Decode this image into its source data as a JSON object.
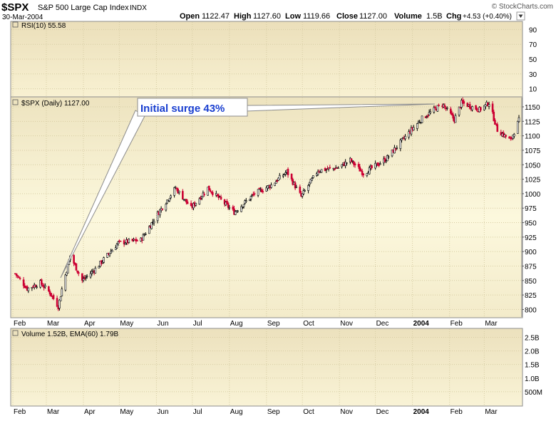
{
  "header": {
    "symbol": "$SPX",
    "name": "S&P 500 Large Cap Index",
    "exchange": "INDX",
    "date": "30-Mar-2004",
    "open_label": "Open",
    "open": "1122.47",
    "high_label": "High",
    "high": "1127.60",
    "low_label": "Low",
    "low": "1119.66",
    "close_label": "Close",
    "close": "1127.00",
    "volume_label": "Volume",
    "volume": "1.5B",
    "chg_label": "Chg",
    "chg": "+4.53 (+0.40%)",
    "watermark": "© StockCharts.com"
  },
  "panels": {
    "rsi_legend": "RSI(10) 55.58",
    "price_legend": "$SPX (Daily) 1127.00",
    "volume_legend": "Volume 1.52B, EMA(60) 1.79B"
  },
  "annotation": {
    "text": "Initial surge 43%"
  },
  "colors": {
    "up": "#000000",
    "down": "#cc0033",
    "panel_bg_top": "#efe5c4",
    "panel_bg_mid": "#fbf6d9",
    "grid": "#d8cfa8",
    "annotation_text": "#1a3fd0",
    "border": "#8c8c8c"
  },
  "chart_data": [
    {
      "type": "line",
      "title": "RSI(10) 55.58",
      "y_ticks": [
        "10",
        "30",
        "50",
        "70",
        "90"
      ],
      "ylim": [
        0,
        100
      ]
    },
    {
      "type": "candlestick",
      "title": "$SPX (Daily) 1127.00",
      "y_ticks": [
        "800",
        "825",
        "850",
        "875",
        "900",
        "925",
        "950",
        "975",
        "1000",
        "1025",
        "1050",
        "1075",
        "1100",
        "1125",
        "1150"
      ],
      "ylim": [
        787,
        1166
      ],
      "x_ticks": [
        "Feb",
        "Mar",
        "Apr",
        "May",
        "Jun",
        "Jul",
        "Aug",
        "Sep",
        "Oct",
        "Nov",
        "Dec",
        "2004",
        "Feb",
        "Mar"
      ],
      "x_range": [
        "2003-02-01",
        "2004-03-30"
      ],
      "series": [
        {
          "points": [
            [
              "2003-02-03",
              862
            ],
            [
              "2003-02-13",
              836
            ],
            [
              "2003-02-24",
              846
            ],
            [
              "2003-03-04",
              829
            ],
            [
              "2003-03-11",
              805
            ],
            [
              "2003-03-14",
              835
            ],
            [
              "2003-03-21",
              893
            ],
            [
              "2003-03-31",
              850
            ],
            [
              "2003-04-11",
              870
            ],
            [
              "2003-04-30",
              915
            ],
            [
              "2003-05-19",
              920
            ],
            [
              "2003-06-02",
              965
            ],
            [
              "2003-06-17",
              1010
            ],
            [
              "2003-06-30",
              975
            ],
            [
              "2003-07-14",
              1010
            ],
            [
              "2003-08-05",
              968
            ],
            [
              "2003-08-22",
              1000
            ],
            [
              "2003-09-05",
              1015
            ],
            [
              "2003-09-18",
              1038
            ],
            [
              "2003-09-30",
              995
            ],
            [
              "2003-10-14",
              1040
            ],
            [
              "2003-10-31",
              1045
            ],
            [
              "2003-11-10",
              1058
            ],
            [
              "2003-11-21",
              1035
            ],
            [
              "2003-12-10",
              1060
            ],
            [
              "2003-12-31",
              1110
            ],
            [
              "2004-01-09",
              1130
            ],
            [
              "2004-01-26",
              1155
            ],
            [
              "2004-02-05",
              1128
            ],
            [
              "2004-02-11",
              1157
            ],
            [
              "2004-02-26",
              1145
            ],
            [
              "2004-03-05",
              1157
            ],
            [
              "2004-03-12",
              1110
            ],
            [
              "2004-03-23",
              1092
            ],
            [
              "2004-03-30",
              1127
            ]
          ]
        }
      ]
    },
    {
      "type": "bar",
      "title": "Volume 1.52B, EMA(60) 1.79B",
      "y_ticks": [
        "500M",
        "1.0B",
        "1.5B",
        "2.0B",
        "2.5B"
      ],
      "ylim": [
        0,
        2.8
      ]
    }
  ]
}
